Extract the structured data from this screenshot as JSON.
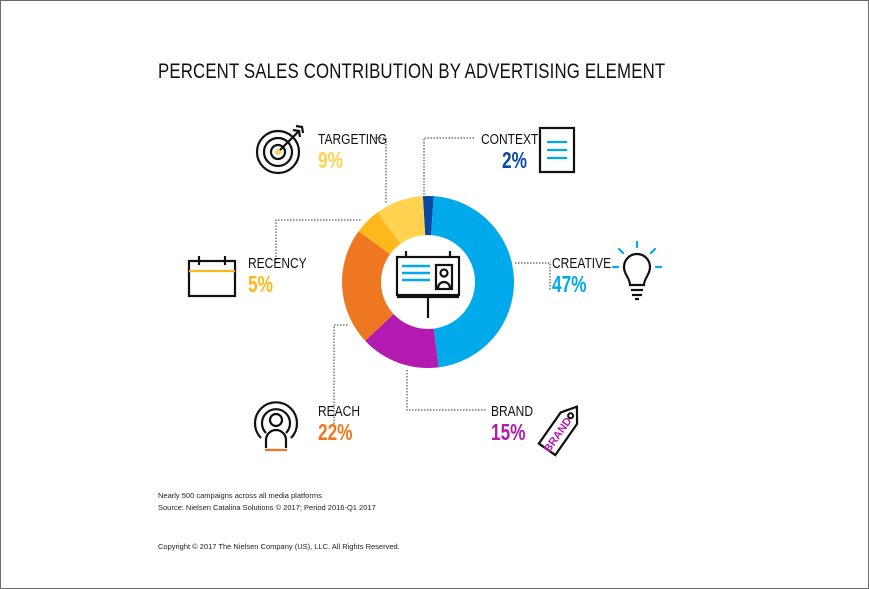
{
  "colors": {
    "creative": "#00a9ea",
    "brand": "#b31ab0",
    "reach": "#ef7721",
    "recency": "#ffb81c",
    "targeting": "#ffd24f",
    "context": "#0b4aa3"
  },
  "icons": [
    "target-icon",
    "document-icon",
    "calendar-icon",
    "lightbulb-icon",
    "person-signal-icon",
    "tag-icon",
    "billboard-icon"
  ],
  "chart_data": {
    "type": "pie",
    "variant": "donut",
    "title": "PERCENT SALES CONTRIBUTION BY ADVERTISING ELEMENT",
    "slices": [
      {
        "label": "CONTEXT",
        "value": 2,
        "display": "2%",
        "color": "#0b4aa3"
      },
      {
        "label": "CREATIVE",
        "value": 47,
        "display": "47%",
        "color": "#00a9ea"
      },
      {
        "label": "BRAND",
        "value": 15,
        "display": "15%",
        "color": "#b31ab0"
      },
      {
        "label": "REACH",
        "value": 22,
        "display": "22%",
        "color": "#ef7721"
      },
      {
        "label": "RECENCY",
        "value": 5,
        "display": "5%",
        "color": "#ffb81c"
      },
      {
        "label": "TARGETING",
        "value": 9,
        "display": "9%",
        "color": "#ffd24f"
      }
    ]
  },
  "tag_text": "BRAND",
  "footnotes": {
    "line1": "Nearly 500 campaigns across all media platforms",
    "line2": "Source: Nielsen Catalina Solutions © 2017; Period 2016-Q1 2017",
    "copyright": "Copyright © 2017 The Nielsen Company (US), LLC. All Rights Reserved."
  }
}
